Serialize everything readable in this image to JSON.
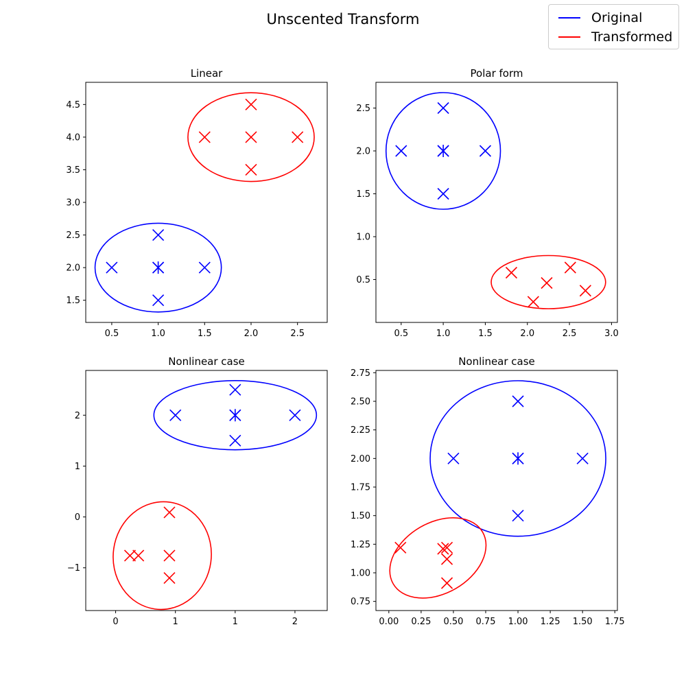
{
  "figure": {
    "title": "Unscented Transform",
    "legend": [
      {
        "label": "Original",
        "color": "#0000ff"
      },
      {
        "label": "Transformed",
        "color": "#ff0000"
      }
    ]
  },
  "chart_data": [
    {
      "type": "scatter",
      "title": "Linear",
      "xlim": [
        0.22,
        2.82
      ],
      "ylim": [
        1.16,
        4.84
      ],
      "xticks": [
        0.5,
        1.0,
        1.5,
        2.0,
        2.5
      ],
      "yticks": [
        1.5,
        2.0,
        2.5,
        3.0,
        3.5,
        4.0,
        4.5
      ],
      "tick_decimals": 1,
      "series": [
        {
          "role": "original",
          "color": "#0000ff",
          "points": [
            [
              1,
              2
            ],
            [
              1,
              2
            ],
            [
              1,
              2.5
            ],
            [
              1,
              1.5
            ],
            [
              1.5,
              2
            ],
            [
              0.5,
              2
            ]
          ],
          "mean": [
            1,
            2
          ],
          "ellipse": {
            "cx": 1.0,
            "cy": 2.0,
            "rx": 0.68,
            "ry": 0.68,
            "angle": 0
          }
        },
        {
          "role": "transformed",
          "color": "#ff0000",
          "points": [
            [
              2,
              4
            ],
            [
              2,
              4.5
            ],
            [
              2,
              3.5
            ],
            [
              2.5,
              4
            ],
            [
              1.5,
              4
            ]
          ],
          "ellipse": {
            "cx": 2.0,
            "cy": 4.0,
            "rx": 0.68,
            "ry": 0.68,
            "angle": 0
          }
        }
      ]
    },
    {
      "type": "scatter",
      "title": "Polar form",
      "xlim": [
        0.2,
        3.07
      ],
      "ylim": [
        0.0,
        2.8
      ],
      "xticks": [
        0.5,
        1.0,
        1.5,
        2.0,
        2.5,
        3.0
      ],
      "yticks": [
        0.5,
        1.0,
        1.5,
        2.0,
        2.5
      ],
      "tick_decimals": 1,
      "series": [
        {
          "role": "original",
          "color": "#0000ff",
          "points": [
            [
              1,
              2
            ],
            [
              1,
              2
            ],
            [
              1,
              2.5
            ],
            [
              1,
              1.5
            ],
            [
              1.5,
              2
            ],
            [
              0.5,
              2
            ]
          ],
          "mean": [
            1,
            2
          ],
          "ellipse": {
            "cx": 1.0,
            "cy": 2.0,
            "rx": 0.68,
            "ry": 0.68,
            "angle": 0
          }
        },
        {
          "role": "transformed",
          "color": "#ff0000",
          "points": [
            [
              2.23,
              0.46
            ],
            [
              2.51,
              0.64
            ],
            [
              2.07,
              0.24
            ],
            [
              1.81,
              0.58
            ],
            [
              2.69,
              0.37
            ]
          ],
          "ellipse": {
            "cx": 2.25,
            "cy": 0.47,
            "rx": 0.68,
            "ry": 0.31,
            "angle": 0
          }
        }
      ]
    },
    {
      "type": "scatter",
      "title": "Nonlinear case",
      "xlim": [
        -0.25,
        1.77
      ],
      "ylim": [
        -1.84,
        2.88
      ],
      "xticks": [
        0.0,
        0.5,
        1.0,
        1.5
      ],
      "yticks": [
        -1,
        0,
        1,
        2
      ],
      "tick_decimals": 0,
      "series": [
        {
          "role": "original",
          "color": "#0000ff",
          "points": [
            [
              1,
              2
            ],
            [
              1,
              2
            ],
            [
              1,
              2.5
            ],
            [
              1,
              1.5
            ],
            [
              1.5,
              2
            ],
            [
              0.5,
              2
            ]
          ],
          "mean": [
            1,
            2
          ],
          "ellipse": {
            "cx": 1.0,
            "cy": 2.0,
            "rx": 0.68,
            "ry": 0.68,
            "angle": 0
          }
        },
        {
          "role": "transformed",
          "color": "#ff0000",
          "points": [
            [
              0.19,
              -0.76
            ],
            [
              0.45,
              0.09
            ],
            [
              0.45,
              -1.2
            ],
            [
              0.45,
              -0.76
            ],
            [
              0.12,
              -0.76
            ]
          ],
          "ellipse": {
            "cx": 0.39,
            "cy": -0.76,
            "rx": 0.41,
            "ry": 1.06,
            "angle": -8
          }
        }
      ]
    },
    {
      "type": "scatter",
      "title": "Nonlinear case",
      "xlim": [
        -0.1,
        1.77
      ],
      "ylim": [
        0.67,
        2.77
      ],
      "xticks": [
        0.0,
        0.25,
        0.5,
        0.75,
        1.0,
        1.25,
        1.5,
        1.75
      ],
      "yticks": [
        0.75,
        1.0,
        1.25,
        1.5,
        1.75,
        2.0,
        2.25,
        2.5,
        2.75
      ],
      "tick_decimals": 2,
      "series": [
        {
          "role": "original",
          "color": "#0000ff",
          "points": [
            [
              1,
              2
            ],
            [
              1,
              2
            ],
            [
              1,
              2.5
            ],
            [
              1,
              1.5
            ],
            [
              1.5,
              2
            ],
            [
              0.5,
              2
            ]
          ],
          "mean": [
            1,
            2
          ],
          "ellipse": {
            "cx": 1.0,
            "cy": 2.0,
            "rx": 0.68,
            "ry": 0.68,
            "angle": 0
          }
        },
        {
          "role": "transformed",
          "color": "#ff0000",
          "points": [
            [
              0.42,
              1.21
            ],
            [
              0.45,
              1.22
            ],
            [
              0.45,
              1.12
            ],
            [
              0.45,
              0.91
            ],
            [
              0.09,
              1.22
            ]
          ],
          "ellipse": {
            "cx": 0.38,
            "cy": 1.13,
            "rx": 0.4,
            "ry": 0.31,
            "angle": 30
          }
        }
      ]
    }
  ]
}
